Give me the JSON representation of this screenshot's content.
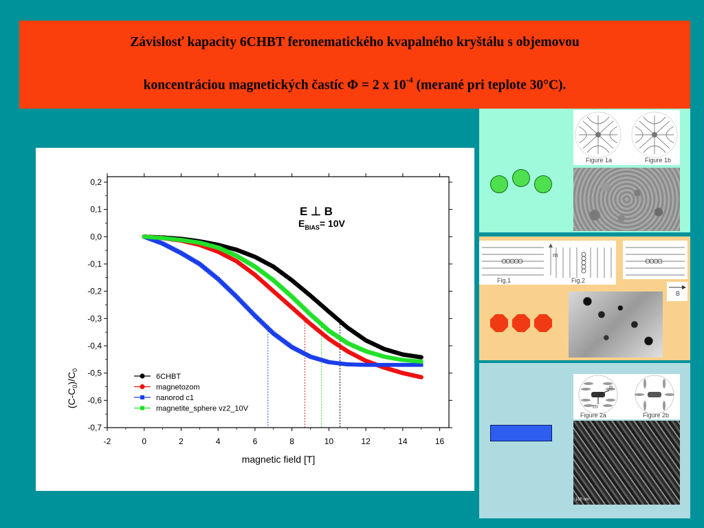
{
  "banner": {
    "line1": "Závislosť kapacity 6CHBT feronematického kvapalného kryštálu s objemovou",
    "line2_pre": "koncentráciou magnetických častíc Φ = 2 x 10",
    "line2_sup": "-4",
    "line2_post": " (merané pri teplote 30°C)."
  },
  "chart_data": {
    "type": "line",
    "title": "",
    "xlabel": "magnetic field [T]",
    "ylabel": "(C-C0)/C0",
    "xlim": [
      -2,
      16.5
    ],
    "ylim": [
      -0.7,
      0.22
    ],
    "x_ticks": [
      "-2",
      "0",
      "2",
      "4",
      "6",
      "8",
      "10",
      "12",
      "14",
      "16"
    ],
    "y_ticks": [
      "0,2",
      "0,1",
      "0,0",
      "-0,1",
      "-0,2",
      "-0,3",
      "-0,4",
      "-0,5",
      "-0,6",
      "-0,7"
    ],
    "annotation_line1": "E ⊥ B",
    "annotation_bias_sub": "BIAS",
    "annotation_bias_val": "= 10V",
    "legend_position": "lower-left",
    "series": [
      {
        "name": "6CHBT",
        "color": "#000000",
        "marker": "circle",
        "points": [
          [
            0,
            0
          ],
          [
            1,
            -0.003
          ],
          [
            2,
            -0.008
          ],
          [
            3,
            -0.017
          ],
          [
            4,
            -0.03
          ],
          [
            5,
            -0.048
          ],
          [
            6,
            -0.074
          ],
          [
            7,
            -0.11
          ],
          [
            8,
            -0.16
          ],
          [
            9,
            -0.216
          ],
          [
            10,
            -0.275
          ],
          [
            11,
            -0.333
          ],
          [
            12,
            -0.38
          ],
          [
            13,
            -0.412
          ],
          [
            14,
            -0.432
          ],
          [
            15,
            -0.442
          ]
        ]
      },
      {
        "name": "magnetozom",
        "color": "#ee1111",
        "marker": "circle",
        "points": [
          [
            0,
            0
          ],
          [
            1,
            -0.005
          ],
          [
            2,
            -0.014
          ],
          [
            3,
            -0.03
          ],
          [
            4,
            -0.055
          ],
          [
            5,
            -0.09
          ],
          [
            6,
            -0.14
          ],
          [
            7,
            -0.2
          ],
          [
            8,
            -0.26
          ],
          [
            9,
            -0.32
          ],
          [
            10,
            -0.375
          ],
          [
            11,
            -0.42
          ],
          [
            12,
            -0.455
          ],
          [
            13,
            -0.48
          ],
          [
            14,
            -0.5
          ],
          [
            15,
            -0.515
          ]
        ]
      },
      {
        "name": "nanorod c1",
        "color": "#1a3ee8",
        "marker": "square",
        "points": [
          [
            0,
            0
          ],
          [
            1,
            -0.025
          ],
          [
            2,
            -0.06
          ],
          [
            3,
            -0.1
          ],
          [
            4,
            -0.155
          ],
          [
            5,
            -0.22
          ],
          [
            6,
            -0.29
          ],
          [
            7,
            -0.355
          ],
          [
            8,
            -0.405
          ],
          [
            9,
            -0.44
          ],
          [
            10,
            -0.46
          ],
          [
            11,
            -0.468
          ],
          [
            12,
            -0.47
          ],
          [
            13,
            -0.47
          ],
          [
            14,
            -0.47
          ],
          [
            15,
            -0.47
          ]
        ]
      },
      {
        "name": "magnetite_sphere vz2_10V",
        "color": "#22e02a",
        "marker": "square",
        "points": [
          [
            0,
            0
          ],
          [
            1,
            -0.005
          ],
          [
            2,
            -0.012
          ],
          [
            3,
            -0.022
          ],
          [
            4,
            -0.04
          ],
          [
            5,
            -0.07
          ],
          [
            6,
            -0.11
          ],
          [
            7,
            -0.16
          ],
          [
            8,
            -0.22
          ],
          [
            9,
            -0.285
          ],
          [
            10,
            -0.345
          ],
          [
            11,
            -0.39
          ],
          [
            12,
            -0.42
          ],
          [
            13,
            -0.44
          ],
          [
            14,
            -0.452
          ],
          [
            15,
            -0.458
          ]
        ]
      }
    ],
    "vlines": [
      {
        "x": 6.7,
        "color": "#1a3ee8"
      },
      {
        "x": 8.7,
        "color": "#ee1111"
      },
      {
        "x": 9.6,
        "color": "#22e02a"
      },
      {
        "x": 10.6,
        "color": "#000000"
      }
    ]
  },
  "panel1": {
    "fig_a": "Figure 1a",
    "fig_b": "Figure 1b",
    "shape_color": "#4ee04e"
  },
  "panel2": {
    "fig_1": "Fig.1",
    "fig_2": "Fig.2",
    "b_label": "B",
    "m_label": "m",
    "shape_color": "#f03a14"
  },
  "panel3": {
    "fig_a": "Figure 2a",
    "fig_b": "Figure 2b",
    "n_label": "n",
    "m_label": "m",
    "scale_text": "100 nm",
    "shape_color": "#2d5ef0"
  }
}
